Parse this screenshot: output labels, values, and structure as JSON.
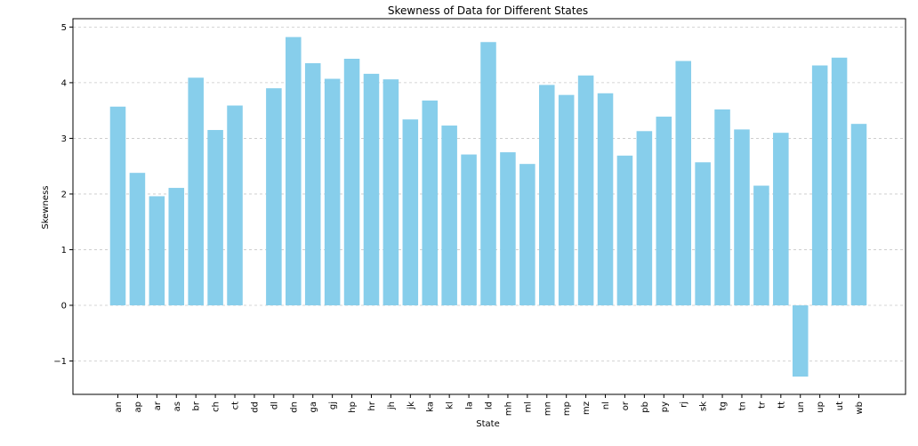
{
  "chart_data": {
    "type": "bar",
    "title": "Skewness of Data for Different States",
    "xlabel": "State",
    "ylabel": "Skewness",
    "ylim": [
      -1.6,
      5.15
    ],
    "yticks": [
      -1,
      0,
      1,
      2,
      3,
      4,
      5
    ],
    "ytick_labels": [
      "−1",
      "0",
      "1",
      "2",
      "3",
      "4",
      "5"
    ],
    "grid": "y-dashed",
    "bar_color": "#87CEEB",
    "grid_color": "#c8c8c8",
    "categories": [
      "an",
      "ap",
      "ar",
      "as",
      "br",
      "ch",
      "ct",
      "dd",
      "dl",
      "dn",
      "ga",
      "gj",
      "hp",
      "hr",
      "jh",
      "jk",
      "ka",
      "kl",
      "la",
      "ld",
      "mh",
      "ml",
      "mn",
      "mp",
      "mz",
      "nl",
      "or",
      "pb",
      "py",
      "rj",
      "sk",
      "tg",
      "tn",
      "tr",
      "tt",
      "un",
      "up",
      "ut",
      "wb"
    ],
    "values": [
      3.57,
      2.38,
      1.96,
      2.11,
      4.09,
      3.15,
      3.59,
      null,
      3.9,
      4.82,
      4.35,
      4.07,
      4.43,
      4.16,
      4.06,
      3.34,
      3.68,
      3.23,
      2.71,
      4.73,
      2.75,
      2.54,
      3.96,
      3.78,
      4.13,
      3.81,
      2.69,
      3.13,
      3.39,
      4.39,
      2.57,
      3.52,
      3.16,
      2.15,
      3.1,
      -1.28,
      4.31,
      4.45,
      3.26
    ]
  }
}
